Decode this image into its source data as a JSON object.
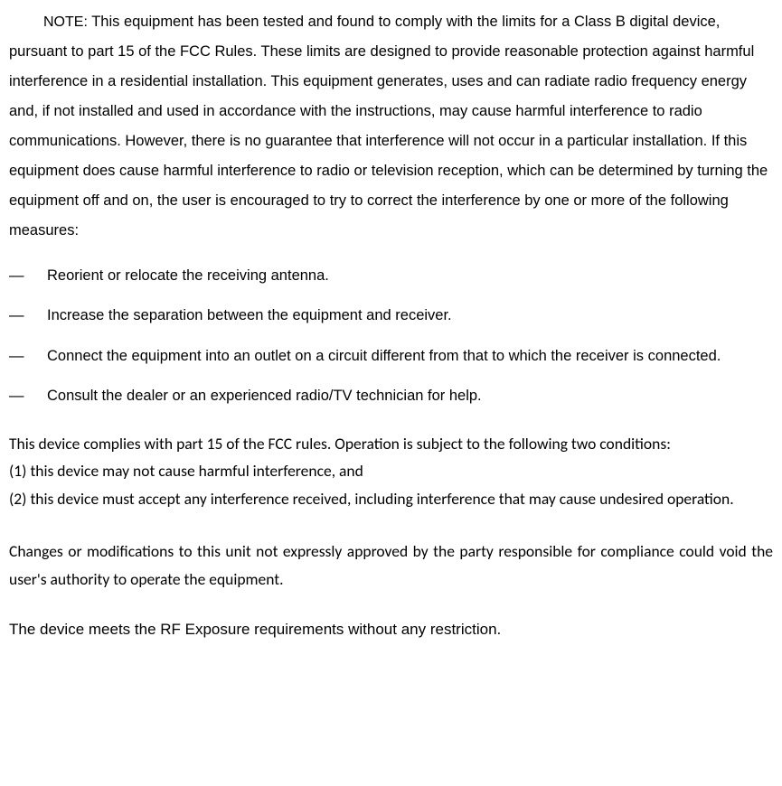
{
  "note": {
    "label": "NOTE:",
    "body": "This equipment has been tested and found to comply with the limits for a Class B digital device, pursuant to part 15 of the FCC Rules. These limits are designed to provide reasonable protection against harmful interference in a residential installation. This equipment generates, uses and can radiate radio frequency energy and, if not installed and used in accordance with the instructions, may cause harmful interference to radio communications. However, there is no guarantee that interference will not occur in a particular installation. If this equipment does cause harmful interference to radio or television reception, which can be determined by turning the equipment off and on, the user is encouraged to try to correct the interference by one or more of the following measures:"
  },
  "measures": [
    "Reorient or relocate the receiving antenna.",
    "Increase the separation between the equipment and receiver.",
    "Connect the equipment into an outlet on a circuit different from that to which the receiver is connected.",
    "Consult the dealer or an experienced radio/TV technician for help."
  ],
  "compliance": {
    "intro": "This device complies with part 15 of the FCC rules. Operation is subject to the following two conditions:",
    "cond1": "(1) this device may not cause harmful interference, and",
    "cond2": "(2) this device must accept any interference received, including interference that may cause undesired operation."
  },
  "changes": "Changes or modifications to this unit not expressly approved by the party responsible for compliance could void the user's authority to operate the equipment.",
  "rf": "The device meets the RF Exposure requirements without any restriction.",
  "style": {
    "text_color": "#000000",
    "background_color": "#ffffff",
    "body_fontsize": 16.5,
    "compliance_fontsize": 17.5,
    "line_height_note": 2,
    "line_height_list": 1.6,
    "line_height_compliance": 1.75,
    "dash_char": "—"
  }
}
